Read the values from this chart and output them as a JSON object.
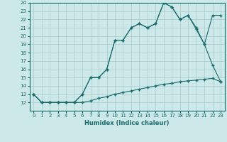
{
  "xlabel": "Humidex (Indice chaleur)",
  "ylabel": "",
  "bg_color": "#cce8e8",
  "grid_color": "#aacccc",
  "line_color": "#1a6b6b",
  "xlim": [
    -0.5,
    23.5
  ],
  "ylim": [
    11,
    24
  ],
  "xticks": [
    0,
    1,
    2,
    3,
    4,
    5,
    6,
    7,
    8,
    9,
    10,
    11,
    12,
    13,
    14,
    15,
    16,
    17,
    18,
    19,
    20,
    21,
    22,
    23
  ],
  "yticks": [
    12,
    13,
    14,
    15,
    16,
    17,
    18,
    19,
    20,
    21,
    22,
    23,
    24
  ],
  "line1_x": [
    0,
    1,
    2,
    3,
    4,
    5,
    6,
    7,
    8,
    9,
    10,
    11,
    12,
    13,
    14,
    15,
    16,
    17,
    18,
    19,
    20,
    21,
    22,
    23
  ],
  "line1_y": [
    13,
    12,
    12,
    12,
    12,
    12,
    13,
    15,
    15,
    16,
    19.5,
    19.5,
    21,
    21.5,
    21,
    21.5,
    24,
    23.5,
    22,
    22.5,
    20.8,
    19,
    22.5,
    22.5
  ],
  "line2_x": [
    0,
    1,
    2,
    3,
    4,
    5,
    6,
    7,
    8,
    9,
    10,
    11,
    12,
    13,
    14,
    15,
    16,
    17,
    18,
    19,
    20,
    21,
    22,
    23
  ],
  "line2_y": [
    13,
    12,
    12,
    12,
    12,
    12,
    13,
    15,
    15,
    16,
    19.5,
    19.5,
    21,
    21.5,
    21,
    21.5,
    24,
    23.5,
    22,
    22.5,
    21,
    19,
    16.5,
    14.5
  ],
  "line3_x": [
    0,
    1,
    2,
    3,
    4,
    5,
    6,
    7,
    8,
    9,
    10,
    11,
    12,
    13,
    14,
    15,
    16,
    17,
    18,
    19,
    20,
    21,
    22,
    23
  ],
  "line3_y": [
    13,
    12,
    12,
    12,
    12,
    12,
    12,
    12.2,
    12.5,
    12.7,
    13,
    13.2,
    13.4,
    13.6,
    13.8,
    14,
    14.2,
    14.3,
    14.5,
    14.6,
    14.7,
    14.8,
    14.9,
    14.5
  ]
}
